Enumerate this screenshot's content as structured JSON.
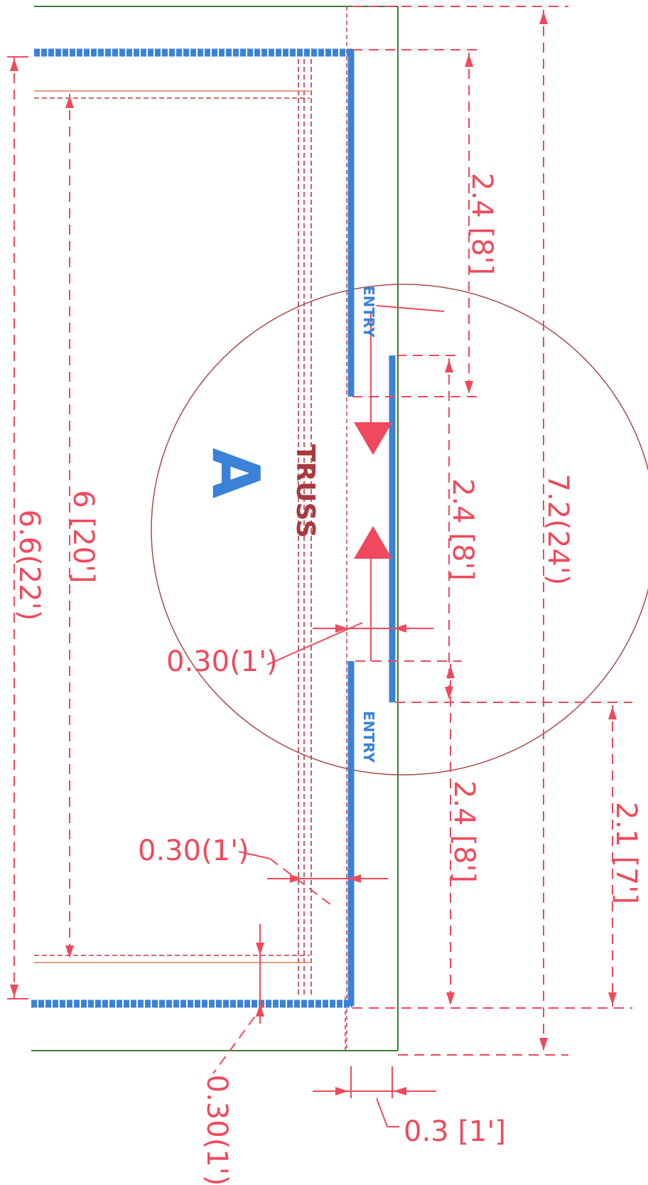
{
  "marker": "A",
  "truss_label": "TRUSS",
  "entry_labels": [
    "ENTRY",
    "ENTRY"
  ],
  "dimensions": {
    "overall_left": "6.6(22')",
    "inner_left": "6 [20']",
    "overall_right": "7.2(24')",
    "top_entry_span": "2.4 [8']",
    "mid_span": "2.4 [8']",
    "bottom_span": "2.4 [8']",
    "door_height": "2.1 [7']",
    "gap_center": "0.30(1')",
    "gap_lower": "0.30(1')",
    "gap_bottom": "0.30(1')",
    "offset_bottom": "0.3 [1']"
  },
  "colors": {
    "dimension": "#ef4a5c",
    "wall": "#3a82d8",
    "truss": "#a83a3f",
    "outline": "#3b7a3b"
  }
}
